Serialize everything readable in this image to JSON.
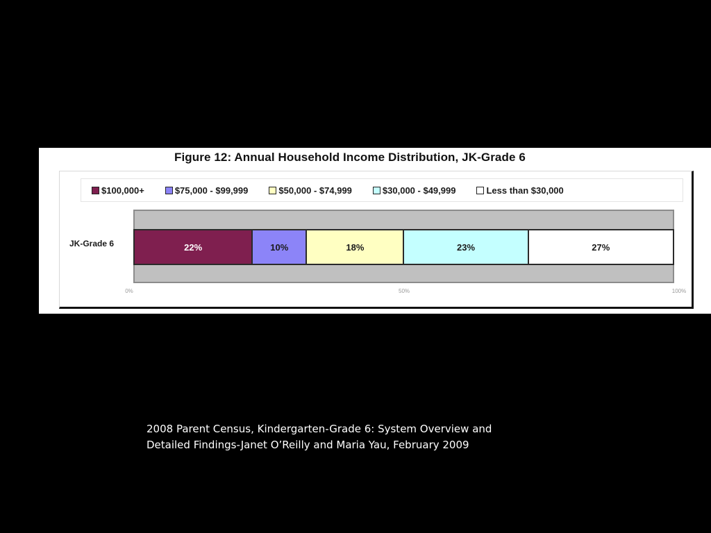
{
  "slide": {
    "background": "#000000",
    "caption": {
      "line1": "2008 Parent Census, Kindergarten-Grade 6:  System Overview and",
      "line2": "Detailed Findings-Janet O’Reilly and Maria Yau, February 2009"
    }
  },
  "figure": {
    "title": "Figure 12: Annual Household Income Distribution, JK-Grade 6",
    "legend": [
      {
        "label": "$100,000+",
        "color": "#7f1f4f"
      },
      {
        "label": "$75,000 - $99,999",
        "color": "#8c84f8"
      },
      {
        "label": "$50,000 - $74,999",
        "color": "#ffffc2"
      },
      {
        "label": "$30,000 - $49,999",
        "color": "#c4ffff"
      },
      {
        "label": "Less than $30,000",
        "color": "#ffffff"
      }
    ],
    "category_label": "JK-Grade 6",
    "segments": [
      {
        "label": "22%",
        "value": 22,
        "color": "#7f1f4f",
        "text_color": "#ffffff"
      },
      {
        "label": "10%",
        "value": 10,
        "color": "#8c84f8",
        "text_color": "#1a1a1a"
      },
      {
        "label": "18%",
        "value": 18,
        "color": "#ffffc2",
        "text_color": "#1a1a1a"
      },
      {
        "label": "23%",
        "value": 23,
        "color": "#c4ffff",
        "text_color": "#1a1a1a"
      },
      {
        "label": "27%",
        "value": 27,
        "color": "#ffffff",
        "text_color": "#1a1a1a"
      }
    ],
    "axis_ticks": [
      {
        "label": "0%",
        "pos": 0
      },
      {
        "label": "50%",
        "pos": 50
      },
      {
        "label": "100%",
        "pos": 100
      }
    ]
  },
  "chart_data": {
    "type": "bar",
    "orientation": "horizontal",
    "stacked": true,
    "percent_stacked": true,
    "title": "Figure 12: Annual Household Income Distribution, JK-Grade 6",
    "categories": [
      "JK-Grade 6"
    ],
    "series": [
      {
        "name": "$100,000+",
        "values": [
          22
        ],
        "color": "#7f1f4f"
      },
      {
        "name": "$75,000 - $99,999",
        "values": [
          10
        ],
        "color": "#8c84f8"
      },
      {
        "name": "$50,000 - $74,999",
        "values": [
          18
        ],
        "color": "#ffffc2"
      },
      {
        "name": "$30,000 - $49,999",
        "values": [
          23
        ],
        "color": "#c4ffff"
      },
      {
        "name": "Less than $30,000",
        "values": [
          27
        ],
        "color": "#ffffff"
      }
    ],
    "data_labels": [
      "22%",
      "10%",
      "18%",
      "23%",
      "27%"
    ],
    "xlabel": "",
    "ylabel": "",
    "xlim": [
      0,
      100
    ],
    "x_ticks": [
      "0%",
      "50%",
      "100%"
    ],
    "grid": false,
    "legend_position": "top",
    "plot_background": "#c0c0c0"
  }
}
